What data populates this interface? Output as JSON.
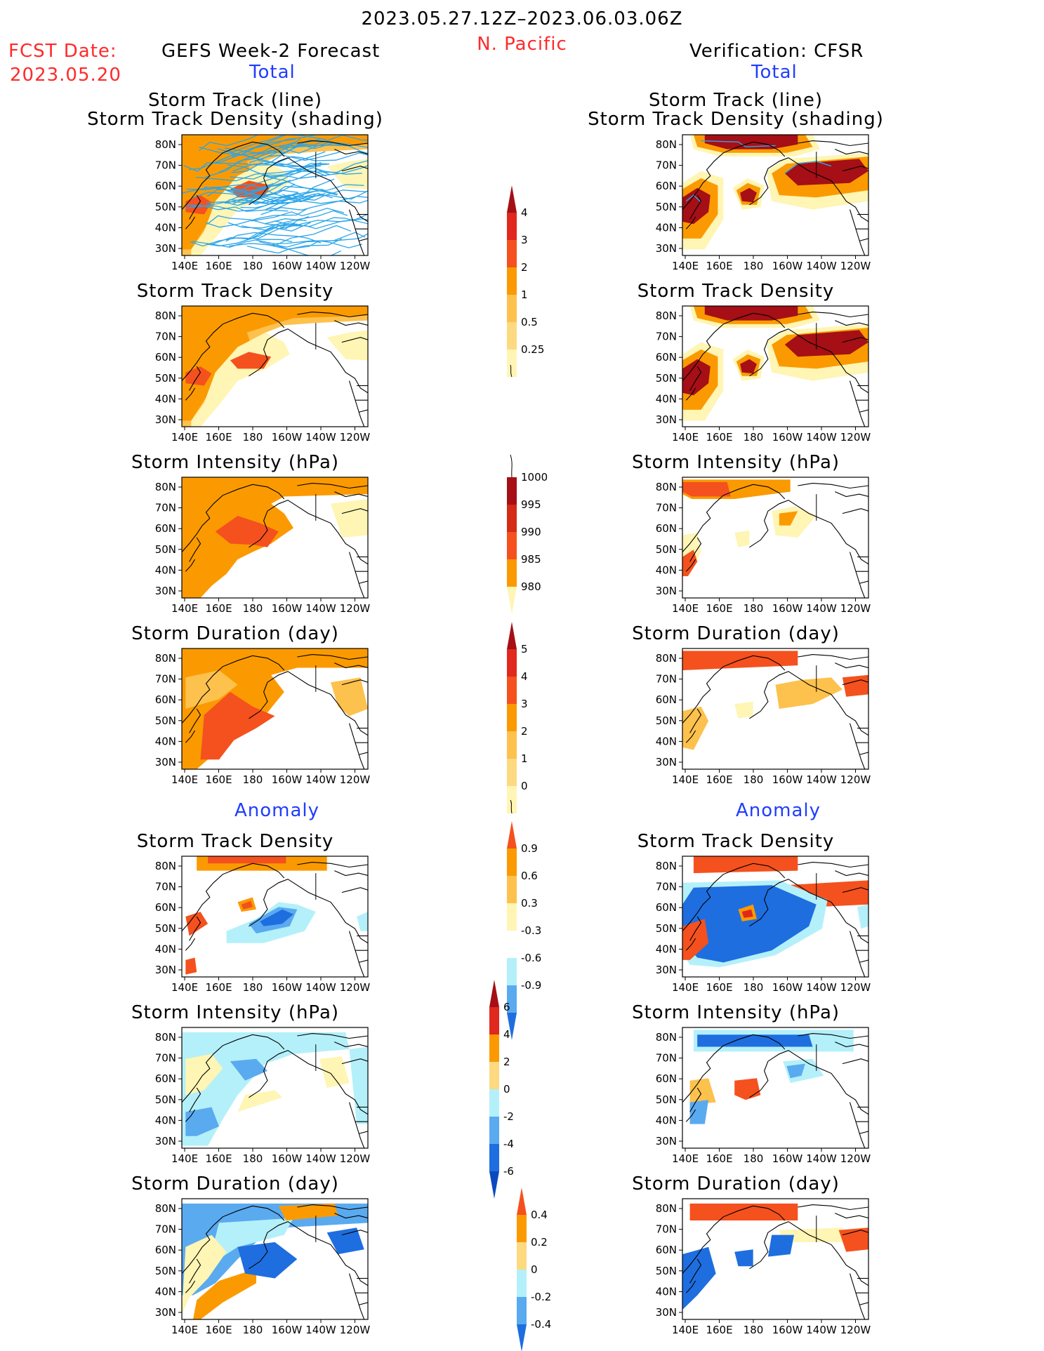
{
  "header": {
    "date_range": "2023.05.27.12Z–2023.06.03.06Z",
    "region": "N. Pacific",
    "fcst_label": "FCST Date:",
    "fcst_date": "2023.05.20",
    "left_title": "GEFS Week-2 Forecast",
    "right_title": "Verification: CFSR",
    "total_left": "Total",
    "total_right": "Total",
    "anomaly_left": "Anomaly",
    "anomaly_right": "Anomaly"
  },
  "map_axes": {
    "lat_ticks": [
      "80N",
      "70N",
      "60N",
      "50N",
      "40N",
      "30N"
    ],
    "lon_ticks": [
      "140E",
      "160E",
      "180",
      "160W",
      "140W",
      "120W"
    ]
  },
  "panels": [
    {
      "id": "st-line",
      "title1": "Storm Track (line)",
      "title2": "Storm Track Density (shading)"
    },
    {
      "id": "st-density",
      "title1": "Storm Track Density",
      "title2": ""
    },
    {
      "id": "st-intensity",
      "title1": "Storm Intensity (hPa)",
      "title2": ""
    },
    {
      "id": "st-duration",
      "title1": "Storm Duration (day)",
      "title2": ""
    },
    {
      "id": "an-density",
      "title1": "Storm Track Density",
      "title2": ""
    },
    {
      "id": "an-intensity",
      "title1": "Storm Intensity (hPa)",
      "title2": ""
    },
    {
      "id": "an-duration",
      "title1": "Storm Duration (day)",
      "title2": ""
    }
  ],
  "colors": {
    "dark_red": "#a50f15",
    "red": "#e0281e",
    "orange_red": "#f4511e",
    "orange": "#fb9a00",
    "light_orange": "#fdc14d",
    "pale_yellow": "#fff5b4",
    "light_blue": "#b4f0fa",
    "mid_blue": "#5aaaf0",
    "blue": "#1e6ee0",
    "track_line": "#2aa5e8"
  },
  "chart_data": [
    {
      "type": "heatmap",
      "id": "colorbar-density",
      "title": "",
      "levels": [
        "0.25",
        "0.5",
        "1",
        "2",
        "3",
        "4"
      ],
      "colors": [
        "#fff5b4",
        "#fdd980",
        "#fdc14d",
        "#fb9a00",
        "#f4511e",
        "#e0281e",
        "#a50f15"
      ]
    },
    {
      "type": "heatmap",
      "id": "colorbar-intensity",
      "title": "",
      "levels": [
        "1000",
        "995",
        "990",
        "985",
        "980"
      ],
      "colors": [
        "#fff5b4",
        "#fb9a00",
        "#f4511e",
        "#d42a16",
        "#a50f15"
      ]
    },
    {
      "type": "heatmap",
      "id": "colorbar-duration",
      "title": "",
      "levels": [
        "0",
        "1",
        "2",
        "3",
        "4",
        "5"
      ],
      "colors": [
        "#fff5b4",
        "#fdd980",
        "#fdc14d",
        "#fb9a00",
        "#f4511e",
        "#e0281e",
        "#a50f15"
      ]
    },
    {
      "type": "heatmap",
      "id": "colorbar-anom-density",
      "title": "",
      "levels": [
        "0.9",
        "0.6",
        "0.3",
        "-0.3",
        "-0.6",
        "-0.9"
      ],
      "colors": [
        "#f4511e",
        "#fb9a00",
        "#fdc14d",
        "#fff5b4",
        "#ffffff",
        "#b4f0fa",
        "#5aaaf0",
        "#1e6ee0"
      ]
    },
    {
      "type": "heatmap",
      "id": "colorbar-anom-intensity",
      "title": "",
      "levels": [
        "6",
        "4",
        "2",
        "0",
        "-2",
        "-4",
        "-6"
      ],
      "colors": [
        "#a50f15",
        "#e0281e",
        "#fb9a00",
        "#fdd980",
        "#b4f0fa",
        "#5aaaf0",
        "#1e6ee0",
        "#0a4ac0"
      ]
    },
    {
      "type": "heatmap",
      "id": "colorbar-anom-duration",
      "title": "",
      "levels": [
        "0.4",
        "0.2",
        "0",
        "-0.2",
        "-0.4"
      ],
      "colors": [
        "#f4511e",
        "#fb9a00",
        "#fdd980",
        "#b4f0fa",
        "#5aaaf0",
        "#1e6ee0"
      ]
    }
  ]
}
